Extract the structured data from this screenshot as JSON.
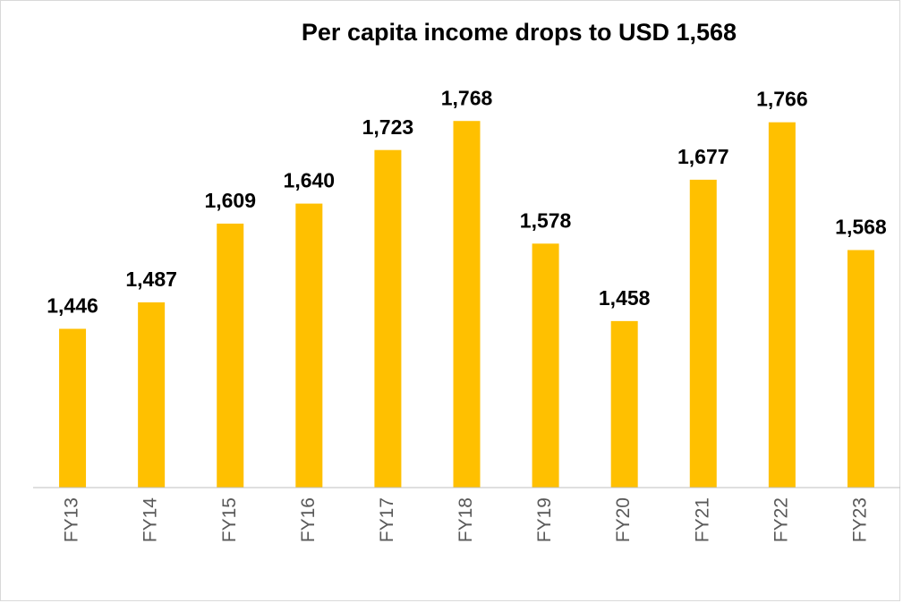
{
  "chart_data": {
    "type": "bar",
    "title": "Per capita income drops to USD 1,568",
    "categories": [
      "FY13",
      "FY14",
      "FY15",
      "FY16",
      "FY17",
      "FY18",
      "FY19",
      "FY20",
      "FY21",
      "FY22",
      "FY23"
    ],
    "values": [
      1446,
      1487,
      1609,
      1640,
      1723,
      1768,
      1578,
      1458,
      1677,
      1766,
      1568
    ],
    "value_labels": [
      "1,446",
      "1,487",
      "1,609",
      "1,640",
      "1,723",
      "1,768",
      "1,578",
      "1,458",
      "1,677",
      "1,766",
      "1,568"
    ],
    "color": "#ffc000",
    "ylim": [
      1200,
      1900
    ]
  }
}
